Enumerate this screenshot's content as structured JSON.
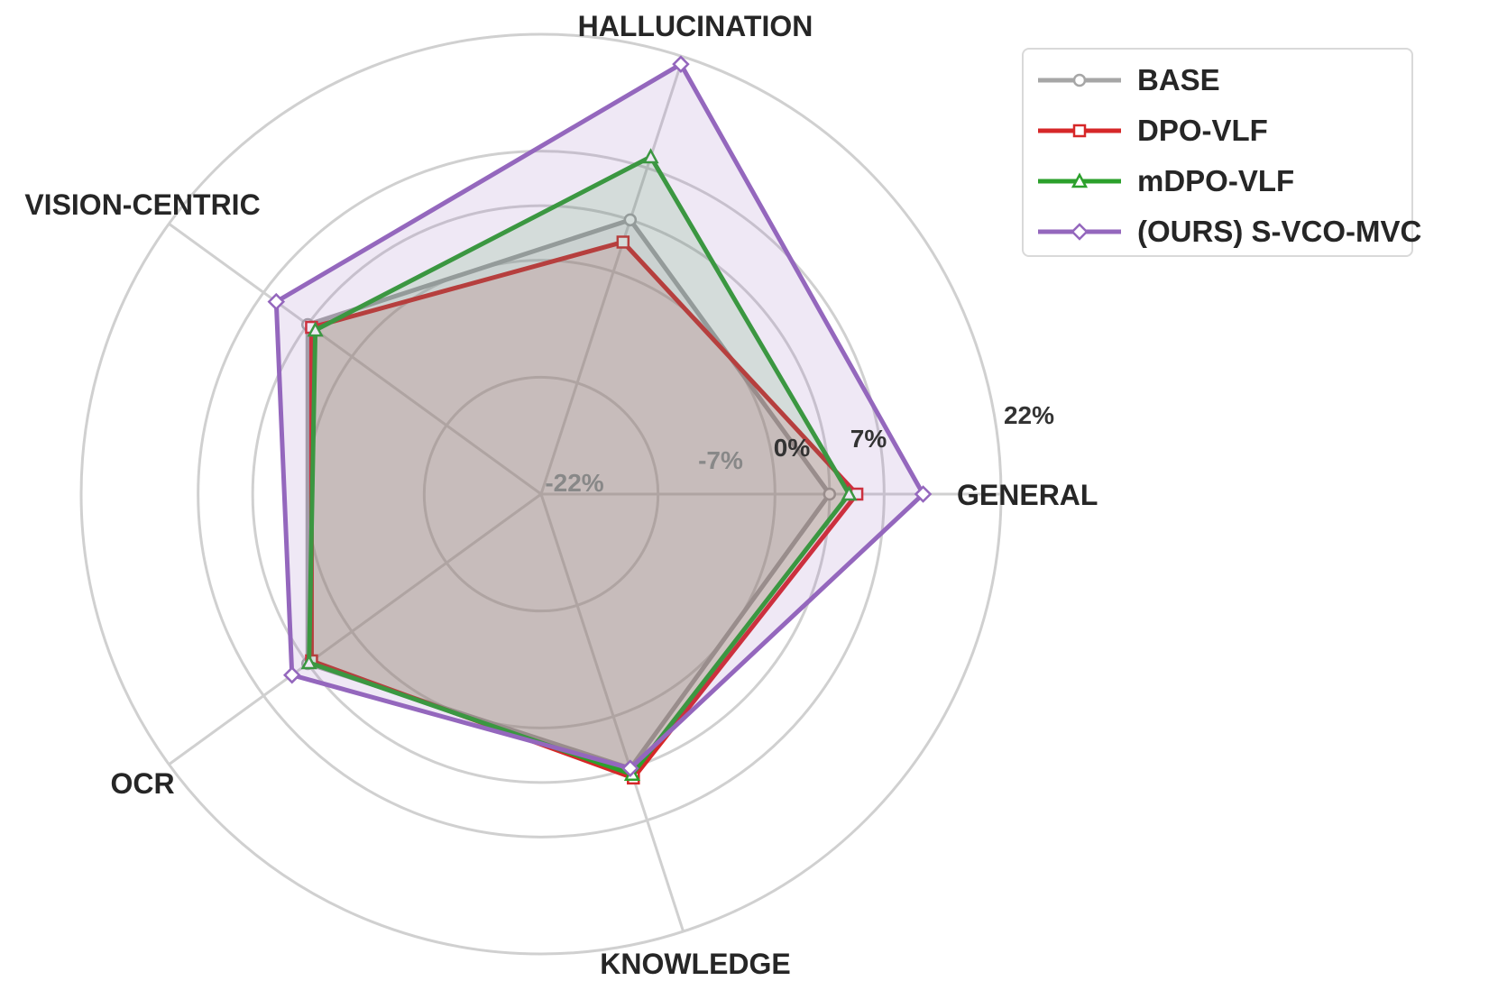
{
  "chart_data": {
    "type": "radar",
    "axes": [
      "GENERAL",
      "HALLUCINATION",
      "VISION-CENTRIC",
      "OCR",
      "KNOWLEDGE"
    ],
    "radial_ticks": [
      {
        "value": -22,
        "label": "-22%"
      },
      {
        "value": -7,
        "label": "-7%"
      },
      {
        "value": 0,
        "label": "0%"
      },
      {
        "value": 7,
        "label": "7%"
      },
      {
        "value": 22,
        "label": "22%"
      }
    ],
    "rlim": [
      -37,
      22
    ],
    "grid": true,
    "legend_position": "top-right",
    "series": [
      {
        "name": "BASE",
        "color": "#a6a6a6",
        "marker": "circle",
        "values": [
          0,
          0,
          0,
          0,
          0
        ]
      },
      {
        "name": "DPO-VLF",
        "color": "#d62728",
        "marker": "square",
        "values": [
          3.5,
          -3,
          -0.6,
          -0.6,
          1.3
        ]
      },
      {
        "name": "mDPO-VLF",
        "color": "#2ca02c",
        "marker": "triangle",
        "values": [
          2.5,
          8.5,
          -1.2,
          -0.2,
          0.8
        ]
      },
      {
        "name": "(OURS) S-VCO-MVC",
        "color": "#9467bd",
        "marker": "diamond",
        "values": [
          12,
          21,
          5,
          2.5,
          0
        ]
      }
    ]
  }
}
